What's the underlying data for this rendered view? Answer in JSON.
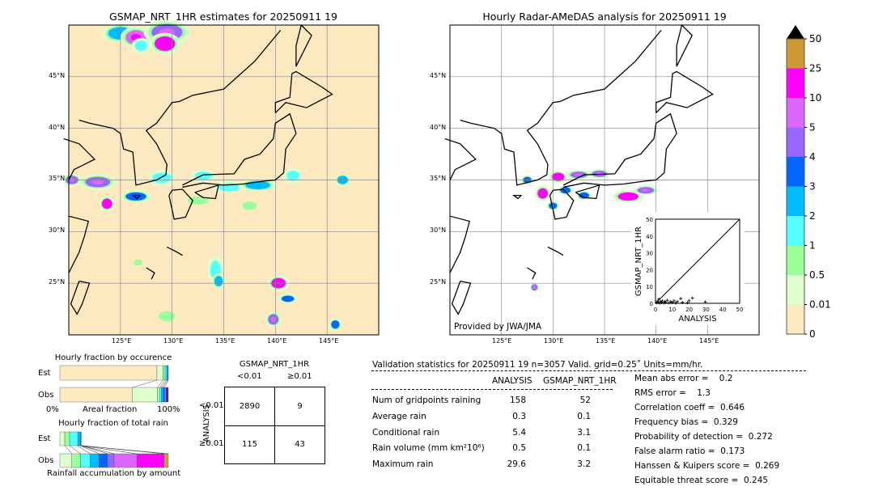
{
  "left_map": {
    "title": "GSMAP_NRT_1HR estimates for 20250911 19",
    "background": "#fde9c0"
  },
  "right_map": {
    "title": "Hourly Radar-AMeDAS analysis for 20250911 19",
    "credit": "Provided by JWA/JMA"
  },
  "lat_labels": [
    "45°N",
    "40°N",
    "35°N",
    "30°N",
    "25°N"
  ],
  "lon_labels": [
    "125°E",
    "130°E",
    "135°E",
    "140°E",
    "145°E"
  ],
  "map_extent": {
    "lon": [
      120,
      150
    ],
    "lat": [
      20,
      50
    ]
  },
  "colorbar": {
    "labels": [
      "50",
      "25",
      "10",
      "5",
      "4",
      "3",
      "2",
      "1",
      "0.5",
      "0.01",
      "0"
    ],
    "colors": [
      "#cc9933",
      "#ff00ff",
      "#dd66ff",
      "#9966ff",
      "#0066ff",
      "#00bbff",
      "#55ffff",
      "#99ff99",
      "#ddffcc",
      "#fde9c0"
    ],
    "extend_color": "#000000"
  },
  "chart_data": [
    {
      "type": "scatter",
      "xlabel": "ANALYSIS",
      "ylabel": "GSMAP_NRT_1HR",
      "xlim": [
        0,
        50
      ],
      "ylim": [
        0,
        50
      ],
      "xticks": [
        "0",
        "10",
        "20",
        "30",
        "40",
        "50"
      ],
      "yticks": [
        "0",
        "10",
        "20",
        "30",
        "40",
        "50"
      ],
      "points": [
        [
          0.5,
          0.3
        ],
        [
          1,
          1
        ],
        [
          1.5,
          0.5
        ],
        [
          2,
          2.5
        ],
        [
          2.5,
          0.2
        ],
        [
          3,
          1
        ],
        [
          3.5,
          0.5
        ],
        [
          4,
          1.5
        ],
        [
          5,
          0.2
        ],
        [
          5.5,
          1
        ],
        [
          6,
          0.5
        ],
        [
          7,
          1.8
        ],
        [
          8,
          0.3
        ],
        [
          9,
          1
        ],
        [
          10,
          0.5
        ],
        [
          11,
          1.5
        ],
        [
          12,
          0.2
        ],
        [
          13,
          1
        ],
        [
          15,
          2.8
        ],
        [
          16,
          0.5
        ],
        [
          19,
          0.3
        ],
        [
          20,
          1.5
        ],
        [
          22,
          3.2
        ],
        [
          29.6,
          0.8
        ]
      ]
    },
    {
      "type": "bar",
      "title": "Hourly fraction by occurence",
      "xlabel": "Areal fraction",
      "xticks": [
        "0%",
        "100%"
      ],
      "categories": [
        "Est",
        "Obs"
      ],
      "series": [
        {
          "values_pct": [
            [
              89.5,
              "#fde9c0"
            ],
            [
              5.5,
              "#ddffcc"
            ],
            [
              2.0,
              "#99ff99"
            ],
            [
              1.5,
              "#55ffff"
            ],
            [
              1.0,
              "#00bbff"
            ],
            [
              0.5,
              "#0066ff"
            ]
          ]
        },
        {
          "values_pct": [
            [
              67,
              "#fde9c0"
            ],
            [
              23,
              "#ddffcc"
            ],
            [
              2,
              "#99ff99"
            ],
            [
              1.5,
              "#55ffff"
            ],
            [
              1.5,
              "#00bbff"
            ],
            [
              1.5,
              "#0066ff"
            ],
            [
              1.5,
              "#9966ff"
            ],
            [
              2,
              "#333366"
            ]
          ]
        }
      ]
    },
    {
      "type": "bar",
      "title": "Hourly fraction of total rain",
      "xlabel": "Rainfall accumulation by amount",
      "categories": [
        "Est",
        "Obs"
      ],
      "series": [
        {
          "values_pct": [
            [
              4.5,
              "#ddffcc"
            ],
            [
              4.5,
              "#99ff99"
            ],
            [
              7.5,
              "#55ffff"
            ],
            [
              2.5,
              "#00bbff"
            ],
            [
              0.7,
              "#0066ff"
            ]
          ]
        },
        {
          "values_pct": [
            [
              11,
              "#ddffcc"
            ],
            [
              8,
              "#99ff99"
            ],
            [
              9,
              "#55ffff"
            ],
            [
              8,
              "#00bbff"
            ],
            [
              8,
              "#0066ff"
            ],
            [
              6,
              "#9966ff"
            ],
            [
              21,
              "#dd66ff"
            ],
            [
              25,
              "#ff00ff"
            ],
            [
              4,
              "#cc9933"
            ]
          ]
        }
      ]
    },
    {
      "type": "table",
      "title": "GSMAP_NRT_1HR",
      "col_headers": [
        "<0.01",
        "≥0.01"
      ],
      "row_label": "ANALYSIS",
      "row_headers": [
        "<0.01",
        "≥0.01"
      ],
      "cells": [
        [
          "2890",
          "9"
        ],
        [
          "115",
          "43"
        ]
      ]
    }
  ],
  "stats": {
    "header": "Validation statistics for 20250911 19  n=3057 Valid. grid=0.25˚ Units=mm/hr.",
    "col1": "ANALYSIS",
    "col2": "GSMAP_NRT_1HR",
    "rows": [
      {
        "label": "Num of gridpoints raining",
        "a": "158",
        "b": "52"
      },
      {
        "label": "Average rain",
        "a": "0.3",
        "b": "0.1"
      },
      {
        "label": "Conditional rain",
        "a": "5.4",
        "b": "3.1"
      },
      {
        "label": "Rain volume (mm km²10⁶)",
        "a": "0.5",
        "b": "0.1"
      },
      {
        "label": "Maximum rain",
        "a": "29.6",
        "b": "3.2"
      }
    ],
    "scores": [
      "Mean abs error =    0.2",
      "RMS error =    1.3",
      "Correlation coeff =  0.646",
      "Frequency bias =  0.329",
      "Probability of detection =  0.272",
      "False alarm ratio =  0.173",
      "Hanssen & Kuipers score =  0.269",
      "Equitable threat score =  0.245"
    ]
  },
  "rain_cells_est": [
    [
      125,
      49.2,
      1.2,
      0.6,
      2
    ],
    [
      126.5,
      48.8,
      1,
      0.7,
      5
    ],
    [
      129.5,
      49.3,
      1.5,
      0.8,
      4
    ],
    [
      129.3,
      48.2,
      1,
      0.7,
      10
    ],
    [
      127,
      48,
      0.6,
      0.5,
      1
    ],
    [
      120.3,
      35,
      0.6,
      0.4,
      4
    ],
    [
      122.8,
      34.8,
      1.2,
      0.5,
      4
    ],
    [
      123.7,
      32.7,
      0.5,
      0.5,
      10
    ],
    [
      126.5,
      33.4,
      1,
      0.4,
      3
    ],
    [
      129,
      35.2,
      0.9,
      0.5,
      1
    ],
    [
      133,
      35.4,
      0.8,
      0.4,
      1
    ],
    [
      135.5,
      34.3,
      1,
      0.4,
      1
    ],
    [
      138.3,
      34.5,
      1.2,
      0.4,
      2
    ],
    [
      141.7,
      35.4,
      0.6,
      0.5,
      1
    ],
    [
      146.5,
      35,
      0.5,
      0.4,
      2
    ],
    [
      132.5,
      33,
      1,
      0.4,
      0.5
    ],
    [
      137.5,
      32.5,
      0.7,
      0.4,
      0.5
    ],
    [
      134.2,
      26.3,
      0.5,
      0.9,
      1
    ],
    [
      134.5,
      25.2,
      0.4,
      0.5,
      2
    ],
    [
      140.3,
      25,
      0.7,
      0.5,
      10
    ],
    [
      141.2,
      23.5,
      0.6,
      0.3,
      3
    ],
    [
      139.8,
      21.5,
      0.5,
      0.5,
      4
    ],
    [
      145.8,
      21,
      0.4,
      0.4,
      3
    ],
    [
      129.5,
      21.8,
      0.8,
      0.5,
      0.5
    ],
    [
      126.7,
      27,
      0.4,
      0.3,
      0.5
    ]
  ],
  "rain_cells_obs": [
    [
      130.5,
      35.3,
      0.6,
      0.4,
      10
    ],
    [
      132.5,
      35.5,
      0.8,
      0.3,
      4
    ],
    [
      134.5,
      35.6,
      0.7,
      0.3,
      4
    ],
    [
      129,
      33.7,
      0.5,
      0.5,
      10
    ],
    [
      131.2,
      34,
      0.5,
      0.3,
      3
    ],
    [
      133,
      33.5,
      0.5,
      0.3,
      3
    ],
    [
      137.3,
      33.4,
      1,
      0.4,
      10
    ],
    [
      139,
      34,
      0.8,
      0.3,
      4
    ],
    [
      130,
      32.5,
      0.4,
      0.3,
      3
    ],
    [
      128.2,
      24.6,
      0.3,
      0.3,
      4
    ],
    [
      127.5,
      35,
      0.4,
      0.3,
      3
    ]
  ]
}
